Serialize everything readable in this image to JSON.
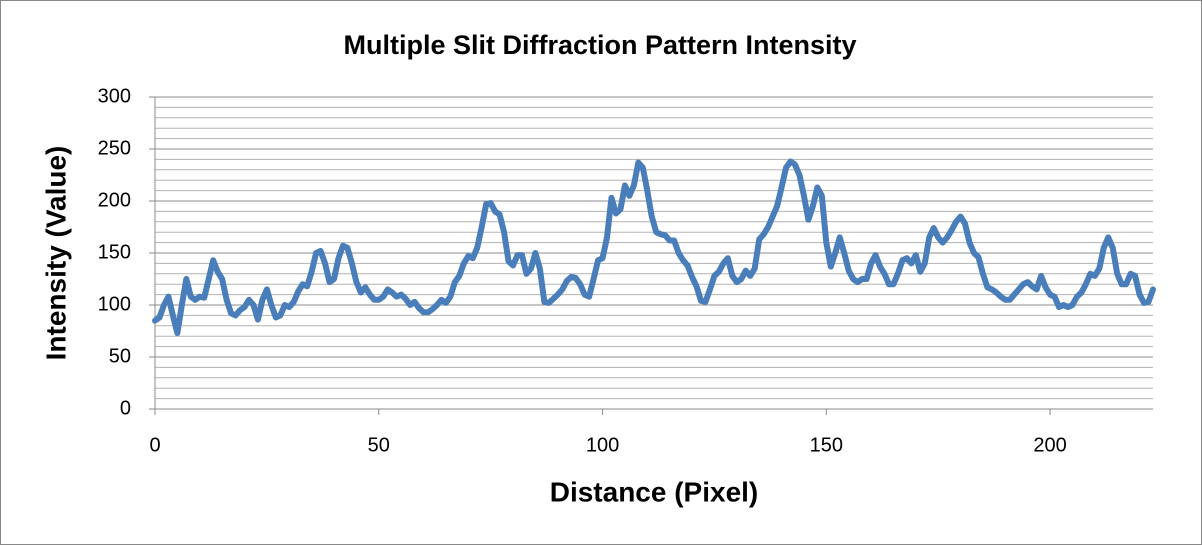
{
  "chart_data": {
    "type": "line",
    "title": "Multiple Slit Diffraction Pattern Intensity",
    "x_label": "Distance (Pixel)",
    "y_label": "Intensity (Value)",
    "xlim": [
      0,
      223
    ],
    "xticks": [
      0,
      50,
      100,
      150,
      200
    ],
    "ylim": [
      0,
      300
    ],
    "yticks": [
      0,
      50,
      100,
      150,
      200,
      250,
      300
    ],
    "y_minor_grid": [
      10,
      20,
      30,
      40,
      60,
      70,
      80,
      90,
      110,
      120,
      130,
      140,
      160,
      170,
      180,
      190,
      210,
      220,
      230,
      240,
      260,
      270,
      280,
      290
    ],
    "grid": true,
    "x": [
      0,
      1,
      2,
      3,
      4,
      5,
      6,
      7,
      8,
      9,
      10,
      11,
      12,
      13,
      14,
      15,
      16,
      17,
      18,
      19,
      20,
      21,
      22,
      23,
      24,
      25,
      26,
      27,
      28,
      29,
      30,
      31,
      32,
      33,
      34,
      35,
      36,
      37,
      38,
      39,
      40,
      41,
      42,
      43,
      44,
      45,
      46,
      47,
      48,
      49,
      50,
      51,
      52,
      53,
      54,
      55,
      56,
      57,
      58,
      59,
      60,
      61,
      62,
      63,
      64,
      65,
      66,
      67,
      68,
      69,
      70,
      71,
      72,
      73,
      74,
      75,
      76,
      77,
      78,
      79,
      80,
      81,
      82,
      83,
      84,
      85,
      86,
      87,
      88,
      89,
      90,
      91,
      92,
      93,
      94,
      95,
      96,
      97,
      98,
      99,
      100,
      101,
      102,
      103,
      104,
      105,
      106,
      107,
      108,
      109,
      110,
      111,
      112,
      113,
      114,
      115,
      116,
      117,
      118,
      119,
      120,
      121,
      122,
      123,
      124,
      125,
      126,
      127,
      128,
      129,
      130,
      131,
      132,
      133,
      134,
      135,
      136,
      137,
      138,
      139,
      140,
      141,
      142,
      143,
      144,
      145,
      146,
      147,
      148,
      149,
      150,
      151,
      152,
      153,
      154,
      155,
      156,
      157,
      158,
      159,
      160,
      161,
      162,
      163,
      164,
      165,
      166,
      167,
      168,
      169,
      170,
      171,
      172,
      173,
      174,
      175,
      176,
      177,
      178,
      179,
      180,
      181,
      182,
      183,
      184,
      185,
      186,
      187,
      188,
      189,
      190,
      191,
      192,
      193,
      194,
      195,
      196,
      197,
      198,
      199,
      200,
      201,
      202,
      203,
      204,
      205,
      206,
      207,
      208,
      209,
      210,
      211,
      212,
      213,
      214,
      215,
      216,
      217,
      218,
      219,
      220,
      221,
      222,
      223
    ],
    "series": [
      {
        "color": "#4a7ebb",
        "values": [
          85,
          88,
          100,
          108,
          90,
          73,
          100,
          125,
          108,
          105,
          108,
          107,
          125,
          143,
          132,
          125,
          105,
          92,
          90,
          95,
          98,
          105,
          100,
          86,
          105,
          115,
          100,
          88,
          90,
          100,
          98,
          103,
          113,
          120,
          118,
          132,
          150,
          152,
          140,
          122,
          125,
          145,
          157,
          155,
          140,
          122,
          112,
          117,
          110,
          105,
          105,
          108,
          115,
          112,
          108,
          110,
          106,
          100,
          103,
          97,
          93,
          93,
          96,
          100,
          105,
          102,
          108,
          122,
          128,
          140,
          147,
          145,
          155,
          175,
          197,
          198,
          190,
          187,
          170,
          142,
          138,
          148,
          148,
          130,
          135,
          150,
          135,
          103,
          102,
          106,
          110,
          115,
          123,
          127,
          126,
          120,
          110,
          108,
          125,
          143,
          145,
          165,
          203,
          188,
          192,
          215,
          205,
          215,
          237,
          232,
          210,
          185,
          170,
          168,
          167,
          162,
          162,
          150,
          143,
          138,
          127,
          118,
          104,
          103,
          115,
          128,
          132,
          140,
          145,
          128,
          122,
          125,
          133,
          128,
          135,
          163,
          168,
          175,
          185,
          195,
          213,
          232,
          238,
          235,
          225,
          205,
          182,
          195,
          213,
          205,
          160,
          137,
          150,
          165,
          150,
          133,
          125,
          122,
          125,
          125,
          140,
          148,
          137,
          130,
          120,
          120,
          130,
          143,
          145,
          140,
          148,
          132,
          140,
          165,
          174,
          165,
          160,
          165,
          172,
          180,
          185,
          178,
          160,
          150,
          146,
          130,
          117,
          115,
          112,
          108,
          105,
          105,
          110,
          115,
          120,
          122,
          118,
          115,
          128,
          117,
          110,
          108,
          98,
          100,
          98,
          100,
          108,
          112,
          120,
          130,
          128,
          135,
          155,
          165,
          155,
          130,
          120,
          120,
          130,
          128,
          110,
          102,
          103,
          115
        ]
      }
    ]
  }
}
